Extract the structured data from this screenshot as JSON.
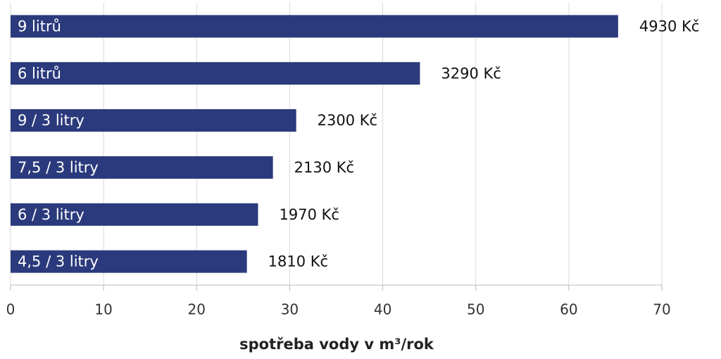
{
  "chart_data": {
    "type": "bar",
    "orientation": "horizontal",
    "categories": [
      "9 litrů",
      "6 litrů",
      "9 / 3 litry",
      "7,5 / 3 litry",
      "6 / 3 litry",
      "4,5 / 3 litry"
    ],
    "values": [
      65.3,
      44.0,
      30.7,
      28.2,
      26.6,
      25.4
    ],
    "cost_labels": [
      "4930 Kč",
      "3290 Kč",
      "2300 Kč",
      "2130 Kč",
      "1970 Kč",
      "1810 Kč"
    ],
    "color": "#2b3a7c",
    "xlabel": "spotřeba vody v m³/rok",
    "xlim": [
      0,
      70
    ],
    "xticks": [
      0,
      10,
      20,
      30,
      40,
      50,
      60,
      70
    ],
    "grid": true
  }
}
